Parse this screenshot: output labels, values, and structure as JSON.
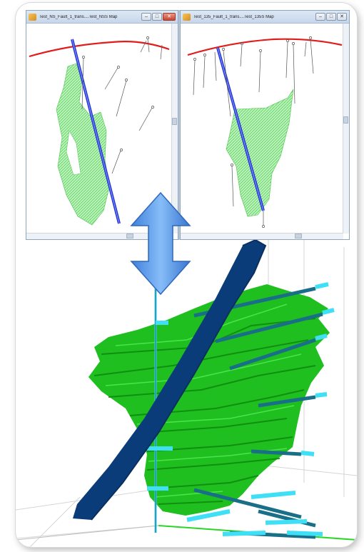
{
  "windows": [
    {
      "title": "Test_NS_Fault_1_trans....Test_NSS Map",
      "buttons": [
        "–",
        "□",
        "✕"
      ]
    },
    {
      "title": "Test_135_Fault_1_trans....Test_135S Map",
      "buttons": [
        "–",
        "□",
        "✕"
      ]
    }
  ],
  "icons": {
    "window_icon": "map-window-icon",
    "sync_arrow": "double-headed-arrow-icon"
  },
  "colors": {
    "fault": "#0b3c7a",
    "orebody": "#2fd62f",
    "drillhole": "#39d3ee",
    "topography": "#e21b1b",
    "section_fault": "#2436d8",
    "arrow": "#4a8ee8"
  }
}
